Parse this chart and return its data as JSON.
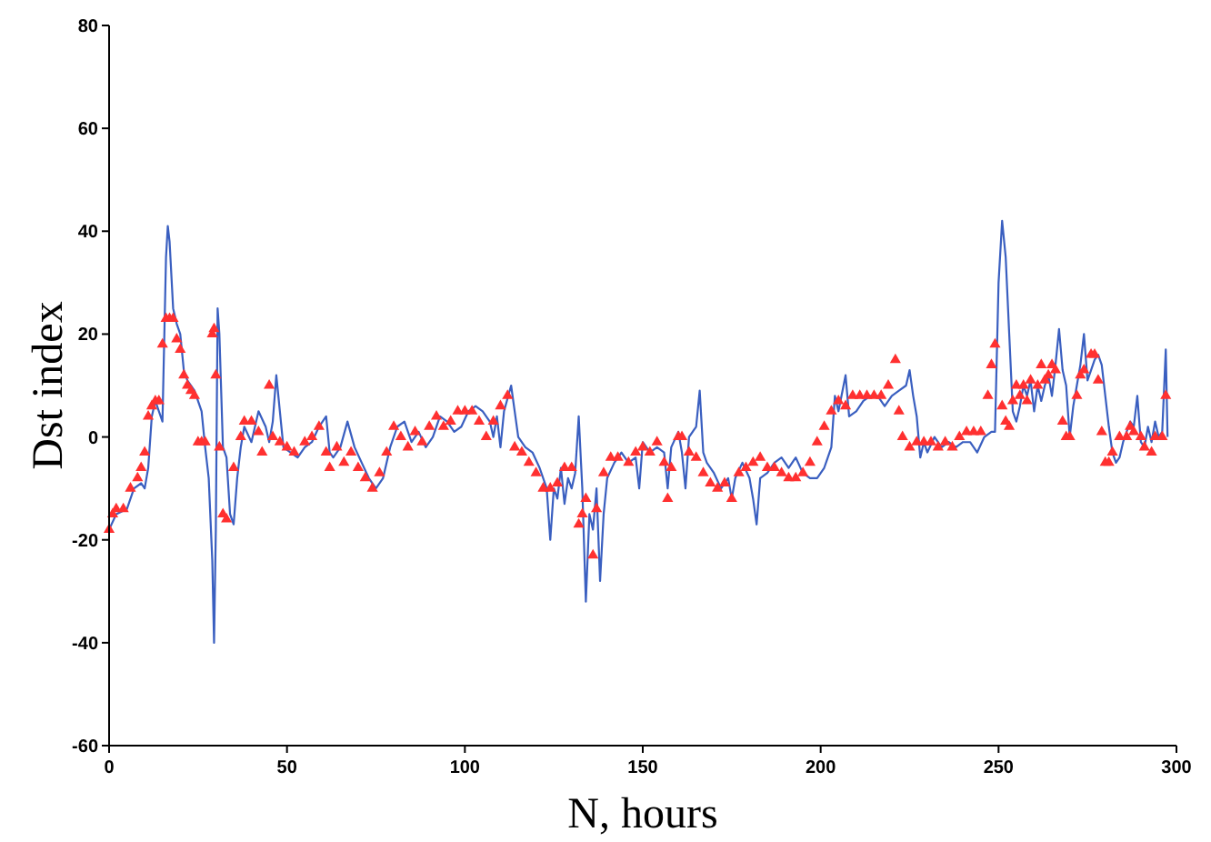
{
  "chart_data": {
    "type": "line",
    "xlabel": "N, hours",
    "ylabel": "Dst index",
    "xlim": [
      0,
      300
    ],
    "xticks": [
      0,
      50,
      100,
      150,
      200,
      250,
      300
    ],
    "ylim": [
      -60,
      80
    ],
    "yticks": [
      -60,
      -40,
      -20,
      0,
      20,
      40,
      60,
      80
    ],
    "grid": false,
    "series": [
      {
        "color": "#3a5fc0",
        "marker": "none",
        "line_style": "solid",
        "x": [
          0,
          2,
          5,
          7,
          9,
          10,
          11,
          12,
          13,
          14,
          15,
          16,
          16.5,
          17,
          18,
          19,
          20,
          21,
          22,
          24,
          26,
          27,
          28,
          29,
          29.5,
          30,
          30.5,
          31,
          32,
          33,
          34,
          35,
          36,
          37,
          38,
          40,
          42,
          44,
          45,
          46,
          47,
          48,
          49,
          51,
          53,
          55,
          57,
          59,
          61,
          62,
          63,
          65,
          67,
          69,
          71,
          73,
          75,
          77,
          79,
          81,
          83,
          85,
          87,
          89,
          91,
          93,
          95,
          97,
          99,
          101,
          103,
          105,
          107,
          108,
          109,
          110,
          111,
          113,
          114,
          115,
          117,
          119,
          121,
          123,
          124,
          125,
          126,
          127,
          128,
          129,
          130,
          131,
          132,
          133,
          134,
          135,
          136,
          137,
          138,
          139,
          140,
          142,
          144,
          146,
          148,
          149,
          150,
          152,
          154,
          156,
          157,
          158,
          160,
          161,
          162,
          163,
          165,
          166,
          167,
          168,
          170,
          172,
          174,
          175,
          176,
          178,
          180,
          181,
          182,
          183,
          185,
          187,
          189,
          191,
          193,
          195,
          197,
          199,
          201,
          203,
          204,
          205,
          207,
          208,
          210,
          212,
          214,
          216,
          218,
          220,
          222,
          224,
          225,
          226,
          227,
          228,
          229,
          230,
          232,
          234,
          236,
          238,
          240,
          242,
          244,
          246,
          248,
          249,
          250,
          251,
          252,
          253,
          254,
          255,
          256,
          257,
          258,
          259,
          260,
          261,
          262,
          263,
          264,
          265,
          266,
          267,
          268,
          269,
          270,
          271,
          272,
          273,
          274,
          275,
          276,
          277,
          278,
          279,
          280,
          281,
          282,
          283,
          284,
          285,
          286,
          287,
          288,
          289,
          290,
          291,
          292,
          293,
          294,
          295,
          296,
          297,
          297.5
        ],
        "values": [
          -18,
          -15,
          -14,
          -10,
          -9,
          -10,
          -6,
          4,
          7,
          5,
          3,
          35,
          41,
          38,
          25,
          22,
          20,
          13,
          11,
          9,
          5,
          -2,
          -8,
          -24,
          -40,
          -18,
          25,
          20,
          -2,
          -4,
          -15,
          -17,
          -8,
          -2,
          2,
          -1,
          5,
          2,
          -1,
          3,
          12,
          5,
          -2,
          -3,
          -4,
          -2,
          -1,
          2,
          4,
          -3,
          -4,
          -2,
          3,
          -2,
          -5,
          -8,
          -10,
          -8,
          -2,
          2,
          3,
          -1,
          1,
          -2,
          0,
          4,
          3,
          1,
          2,
          5,
          6,
          5,
          3,
          0,
          4,
          -2,
          5,
          10,
          5,
          0,
          -2,
          -3,
          -6,
          -10,
          -20,
          -10,
          -12,
          -6,
          -13,
          -8,
          -10,
          -7,
          4,
          -10,
          -32,
          -15,
          -18,
          -10,
          -28,
          -15,
          -8,
          -5,
          -3,
          -5,
          -4,
          -10,
          -1,
          -3,
          -2,
          -3,
          -10,
          -2,
          1,
          -3,
          -10,
          0,
          2,
          9,
          -3,
          -5,
          -7,
          -10,
          -8,
          -12,
          -8,
          -5,
          -8,
          -12,
          -17,
          -8,
          -7,
          -5,
          -4,
          -6,
          -4,
          -7,
          -8,
          -8,
          -6,
          -2,
          8,
          5,
          12,
          4,
          5,
          7,
          8,
          8,
          6,
          8,
          9,
          10,
          13,
          8,
          4,
          -4,
          -1,
          -3,
          0,
          -2,
          -1,
          -2,
          -1,
          -1,
          -3,
          0,
          1,
          1,
          30,
          42,
          35,
          20,
          5,
          3,
          6,
          10,
          8,
          11,
          5,
          10,
          7,
          10,
          12,
          8,
          14,
          21,
          13,
          10,
          0,
          6,
          10,
          14,
          20,
          11,
          13,
          15,
          16,
          14,
          8,
          2,
          -3,
          -5,
          -4,
          -1,
          1,
          3,
          2,
          8,
          -1,
          -2,
          2,
          -1,
          3,
          0,
          1,
          17,
          0
        ]
      },
      {
        "type": "scatter",
        "color": "#ff3030",
        "marker": "triangle",
        "x": [
          0,
          1,
          2,
          4,
          6,
          8,
          9,
          10,
          11,
          12,
          13,
          14,
          15,
          16,
          17,
          18,
          19,
          20,
          21,
          22,
          23,
          24,
          25,
          26,
          27,
          29,
          29.5,
          30,
          31,
          32,
          33,
          35,
          37,
          38,
          40,
          42,
          43,
          45,
          46,
          48,
          50,
          52,
          55,
          57,
          59,
          61,
          62,
          64,
          66,
          68,
          70,
          72,
          74,
          76,
          78,
          80,
          82,
          84,
          86,
          88,
          90,
          92,
          94,
          96,
          98,
          100,
          102,
          104,
          106,
          108,
          110,
          112,
          114,
          116,
          118,
          120,
          122,
          124,
          126,
          128,
          130,
          132,
          133,
          134,
          136,
          137,
          139,
          141,
          143,
          146,
          148,
          150,
          152,
          154,
          156,
          157,
          158,
          160,
          161,
          163,
          165,
          167,
          169,
          171,
          173,
          175,
          177,
          179,
          181,
          183,
          185,
          187,
          189,
          191,
          193,
          195,
          197,
          199,
          201,
          203,
          205,
          207,
          209,
          211,
          213,
          215,
          217,
          219,
          221,
          222,
          223,
          225,
          227,
          229,
          231,
          233,
          235,
          237,
          239,
          241,
          243,
          245,
          247,
          248,
          249,
          251,
          252,
          253,
          254,
          255,
          256,
          257,
          258,
          259,
          261,
          262,
          263,
          264,
          265,
          266,
          268,
          269,
          270,
          272,
          273,
          274,
          276,
          277,
          278,
          279,
          280,
          281,
          282,
          284,
          286,
          287,
          288,
          290,
          291,
          293,
          294,
          296,
          297
        ],
        "values": [
          -18,
          -15,
          -14,
          -14,
          -10,
          -8,
          -6,
          -3,
          4,
          6,
          7,
          7,
          18,
          23,
          23,
          23,
          19,
          17,
          12,
          10,
          9,
          8,
          -1,
          -1,
          -1,
          20,
          21,
          12,
          -2,
          -15,
          -16,
          -6,
          0,
          3,
          3,
          1,
          -3,
          10,
          0,
          -1,
          -2,
          -3,
          -1,
          0,
          2,
          -3,
          -6,
          -2,
          -5,
          -3,
          -6,
          -8,
          -10,
          -7,
          -3,
          2,
          0,
          -2,
          1,
          -1,
          2,
          4,
          2,
          3,
          5,
          5,
          5,
          3,
          0,
          3,
          6,
          8,
          -2,
          -3,
          -5,
          -7,
          -10,
          -10,
          -9,
          -6,
          -6,
          -17,
          -15,
          -12,
          -23,
          -14,
          -7,
          -4,
          -4,
          -5,
          -3,
          -2,
          -3,
          -1,
          -5,
          -12,
          -6,
          0,
          0,
          -3,
          -4,
          -7,
          -9,
          -10,
          -9,
          -12,
          -7,
          -6,
          -5,
          -4,
          -6,
          -6,
          -7,
          -8,
          -8,
          -7,
          -5,
          -1,
          2,
          5,
          7,
          6,
          8,
          8,
          8,
          8,
          8,
          10,
          15,
          5,
          0,
          -2,
          -1,
          -1,
          -1,
          -2,
          -1,
          -2,
          0,
          1,
          1,
          1,
          8,
          14,
          18,
          6,
          3,
          2,
          7,
          10,
          8,
          10,
          7,
          11,
          10,
          14,
          11,
          12,
          14,
          13,
          3,
          0,
          0,
          8,
          12,
          13,
          16,
          16,
          11,
          1,
          -5,
          -5,
          -3,
          0,
          0,
          2,
          1,
          0,
          -2,
          -3,
          0,
          0,
          8
        ]
      }
    ]
  }
}
